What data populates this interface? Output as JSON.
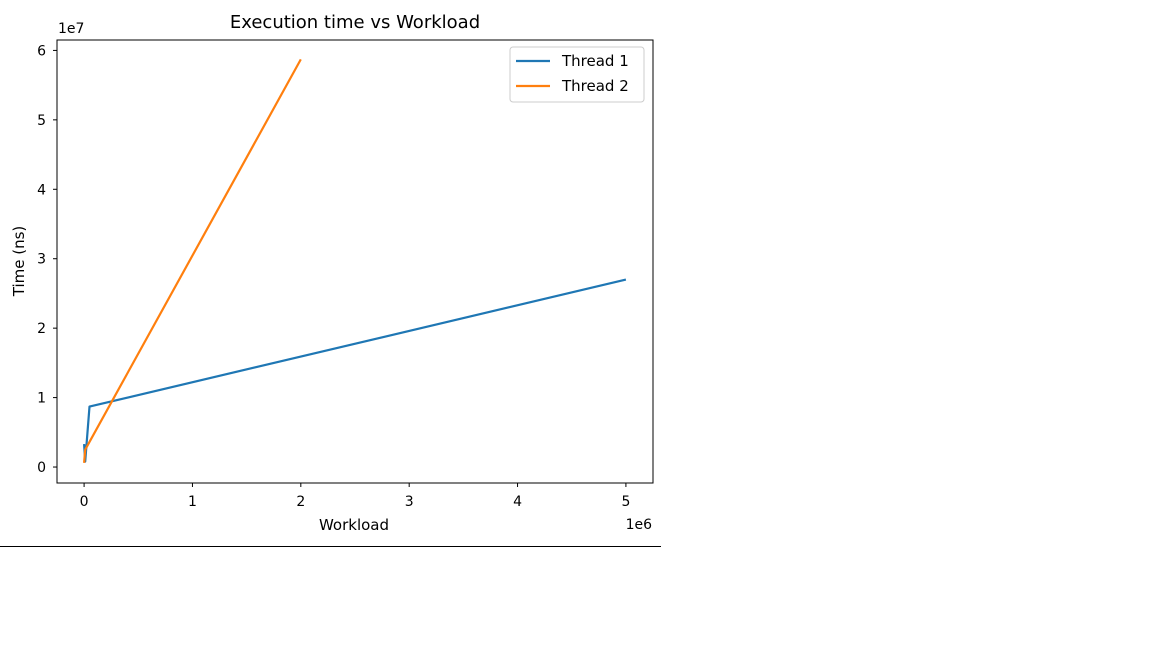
{
  "chart_data": {
    "type": "line",
    "title": "Execution time vs Workload",
    "xlabel": "Workload",
    "ylabel": "Time (ns)",
    "x_offset_label": "1e6",
    "y_offset_label": "1e7",
    "xlim": [
      -250000,
      5250000
    ],
    "ylim": [
      -2300000,
      61500000
    ],
    "xticks": [
      0,
      1000000,
      2000000,
      3000000,
      4000000,
      5000000
    ],
    "xtick_labels": [
      "0",
      "1",
      "2",
      "3",
      "4",
      "5"
    ],
    "yticks": [
      0,
      10000000,
      20000000,
      30000000,
      40000000,
      50000000,
      60000000
    ],
    "ytick_labels": [
      "0",
      "1",
      "2",
      "3",
      "4",
      "5",
      "6"
    ],
    "grid": false,
    "legend_position": "top-right",
    "series": [
      {
        "name": "Thread 1",
        "color": "#1f77b4",
        "x": [
          0,
          10000,
          50000,
          5000000
        ],
        "y": [
          3300000,
          800000,
          8700000,
          27000000
        ]
      },
      {
        "name": "Thread 2",
        "color": "#ff7f0e",
        "x": [
          0,
          10000,
          2000000
        ],
        "y": [
          600000,
          2500000,
          58700000
        ]
      }
    ]
  }
}
